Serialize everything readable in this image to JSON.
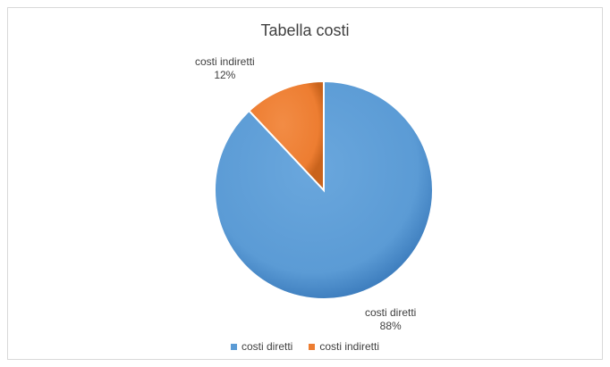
{
  "chart_data": {
    "type": "pie",
    "title": "Tabella costi",
    "categories": [
      "costi diretti",
      "costi indiretti"
    ],
    "values": [
      88,
      12
    ],
    "data_labels": [
      {
        "category": "costi diretti",
        "percent": "88%"
      },
      {
        "category": "costi indiretti",
        "percent": "12%"
      }
    ],
    "colors": [
      "#5b9bd5",
      "#ed7d31"
    ],
    "legend": {
      "placement": "bottom",
      "entries": [
        "costi diretti",
        "costi indiretti"
      ]
    }
  }
}
